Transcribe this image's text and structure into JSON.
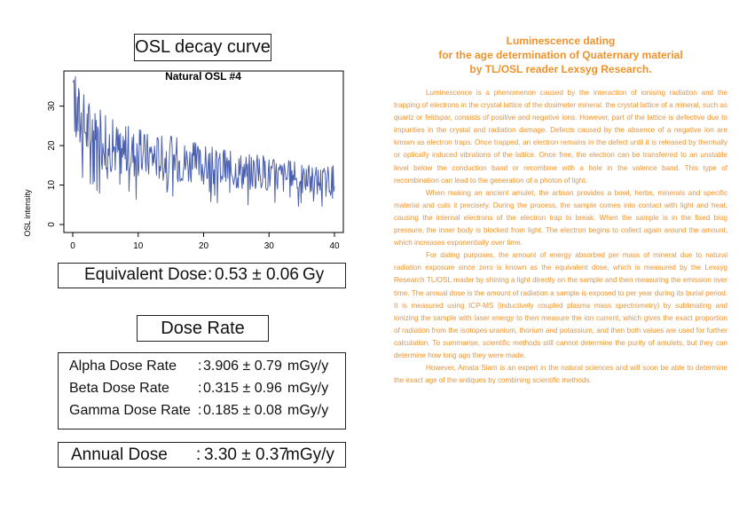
{
  "osl_panel": {
    "title": "OSL decay curve"
  },
  "chart_data": {
    "type": "line",
    "title": "Natural OSL #4",
    "xlabel": "",
    "ylabel": "OSL intensity",
    "xlim": [
      0,
      40
    ],
    "ylim": [
      0,
      38
    ],
    "xticks": [
      "0",
      "10",
      "20",
      "30",
      "40"
    ],
    "yticks": [
      "0",
      "10",
      "20",
      "30"
    ],
    "grid": false,
    "color": "#4a5fae",
    "x_start": 0,
    "x_step": 0.1,
    "envelope": [
      [
        0,
        30
      ],
      [
        1,
        27
      ],
      [
        2,
        25
      ],
      [
        4,
        22
      ],
      [
        6,
        20
      ],
      [
        10,
        18
      ],
      [
        15,
        17
      ],
      [
        20,
        15
      ],
      [
        25,
        14
      ],
      [
        30,
        13
      ],
      [
        35,
        11.5
      ],
      [
        40,
        11
      ]
    ],
    "series": [
      {
        "values": []
      }
    ]
  },
  "equivalent_dose": {
    "label": "Equivalent Dose",
    "sep": ":",
    "value": "0.53 ± 0.06",
    "unit": "Gy"
  },
  "dose_rate_panel": {
    "title": "Dose Rate"
  },
  "dose_rates": [
    {
      "label": "Alpha Dose Rate",
      "sep": ":",
      "value": "3.906 ± 0.79",
      "unit": "mGy/y"
    },
    {
      "label": "Beta Dose Rate",
      "sep": ":",
      "value": "0.315 ± 0.96",
      "unit": "mGy/y"
    },
    {
      "label": "Gamma Dose Rate",
      "sep": ":",
      "value": "0.185 ± 0.08",
      "unit": "mGy/y"
    }
  ],
  "annual_dose": {
    "label": "Annual Dose",
    "sep": ":",
    "value": "3.30 ± 0.37",
    "unit": "mGy/y"
  },
  "article": {
    "heading": [
      "Luminescence dating",
      "for the age determination of Quaternary material",
      "by TL/OSL reader Lexsyg Research."
    ],
    "paragraphs": [
      "Luminescence is a phenomenon caused by the interaction of ionising radiation and the trapping of electrons in the crystal lattice of the dosimeter mineral. the crystal lattice of a mineral, such as quartz or feldspar, consists of positive and negative ions. However, part of the lattice is defective due to impurities in the crystal and radiation damage. Defects caused by the absence of a negative ion are known as electron traps. Once trapped, an electron remains in the defect until it is released by thermally or optically induced vibrations of the lattice. Once free, the electron can be transferred to an unstable level below the conduction band or recombine with a hole in the valence band. This type of recombination can lead to the generation of a photon of light.",
      "When making an ancient amulet, the artisan provides a bowl, herbs, minerals and specific material and cuts it precisely. During the process, the sample comes into contact with light and heat, causing the internal electrons of the electron trap to break. When the sample is in the fixed blog pressure, the inner body is blocked from light. The electron begins to collect again around the amount, which increases exponentially over time.",
      "For dating purposes, the amount of energy absorbed per mass of mineral due to natural radiation exposure since zero is known as the equivalent dose, which is measured by the Lexsyg Research TL/OSL reader by shining a light directly on the sample and then measuring the emission over time. The annual dose is the amount of radiation a sample is exposed to per year during its burial period. It is measured using ICP-MS (inductively coupled plasma mass spectrometry) by sublimating and ionizing the sample with laser energy to then measure the ion current, which gives the exact proportion of radiation from the isotopes uranium, thorium and potassium, and then both values are used for further calculation. To summarise, scientific methods still cannot determine the purity of amulets, but they can determine how long ago they were made.",
      "However, Amata Siam is an expert in the natural sciences and will soon be able to determine the exact age of the antiques by combining scientific methods."
    ]
  }
}
